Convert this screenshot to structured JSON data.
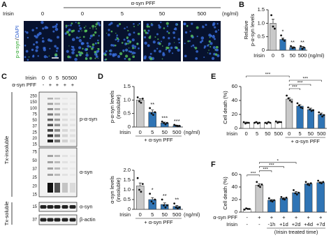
{
  "panel_labels": [
    "A",
    "B",
    "C",
    "D",
    "E",
    "F"
  ],
  "micrographs": {
    "row_label": "Irisin",
    "header": "α-syn PFF",
    "units": "(ng/ml)",
    "doses": [
      "0",
      "0",
      "5",
      "50",
      "500"
    ],
    "stain_green": "p-α-syn",
    "separator": "/",
    "stain_blue": "DAPI"
  },
  "blot": {
    "irisin_label": "Irisin",
    "irisin_doses": [
      "0",
      "0",
      "5",
      "50",
      "500"
    ],
    "pff_label": "α-syn PFF",
    "pff_signs": [
      "-",
      "+",
      "+",
      "+",
      "+"
    ],
    "fractions": [
      "Tx-insoluble",
      "Tx-soluble"
    ],
    "panels": [
      {
        "band": "p-α-syn",
        "markers": [
          "250",
          "150",
          "100",
          "75",
          "50",
          "37",
          "25",
          "20",
          "15"
        ]
      },
      {
        "band": "α-syn",
        "markers": [
          "75",
          "50",
          "37",
          "25",
          "20",
          "15"
        ]
      },
      {
        "band": "α-syn",
        "markers": [
          "15"
        ]
      },
      {
        "band": "β-actin",
        "markers": [
          "37"
        ]
      }
    ]
  },
  "chart_data": [
    {
      "type": "bar",
      "ylabel": [
        "Relative",
        "p-α-syn levels"
      ],
      "xlabel": "Irisin",
      "units": "(ng/ml)",
      "categories": [
        "0",
        "5",
        "50",
        "500"
      ],
      "values": [
        1.0,
        0.4,
        0.1,
        0.1
      ],
      "errors": [
        0.15,
        0.05,
        0.03,
        0.04
      ],
      "points": [
        [
          1.3,
          0.88,
          0.8
        ],
        [
          0.55,
          0.4,
          0.35
        ],
        [
          0.15,
          0.08,
          0.1
        ],
        [
          0.15,
          0.05,
          0.1
        ]
      ],
      "colors": [
        "#c9c9c9",
        "#2f74b5",
        "#2f74b5",
        "#2f74b5"
      ],
      "significance": [
        null,
        "*",
        "**",
        "**"
      ],
      "ylim": [
        0,
        1.5
      ],
      "yticks": [
        0,
        0.5,
        {
          "value": 1,
          "label": "1.0"
        },
        1.5
      ]
    },
    {
      "type": "bar",
      "ylabel": [
        "p-α-syn levels",
        "(insoluble)"
      ],
      "xlabel": "Irisin",
      "units": "(ng/ml)",
      "footer": "+ α-syn PFF",
      "categories": [
        "0",
        "5",
        "50",
        "500"
      ],
      "values": [
        1.0,
        0.55,
        0.15,
        0.05
      ],
      "errors": [
        0.05,
        0.08,
        0.03,
        0.02
      ],
      "points": [
        [
          1.1,
          0.95,
          0.9,
          1.05
        ],
        [
          0.7,
          0.5,
          0.45,
          0.55
        ],
        [
          0.2,
          0.15,
          0.1,
          0.15
        ],
        [
          0.08,
          0.05,
          0.03,
          0.04
        ]
      ],
      "colors": [
        "#c9c9c9",
        "#2f74b5",
        "#2f74b5",
        "#2f74b5"
      ],
      "significance": [
        null,
        "**",
        "***",
        "***"
      ],
      "ylim": [
        0,
        1.5
      ],
      "yticks": [
        0,
        0.5,
        {
          "value": 1,
          "label": "1.0"
        },
        1.5
      ]
    },
    {
      "type": "bar",
      "ylabel": [
        "α-syn levels",
        "(insoluble)"
      ],
      "xlabel": "Irisin",
      "units": "(ng/ml)",
      "footer": "+ α-syn PFF",
      "categories": [
        "0",
        "5",
        "50",
        "500"
      ],
      "values": [
        1.2,
        0.5,
        0.25,
        0.15
      ],
      "errors": [
        0.15,
        0.1,
        0.08,
        0.05
      ],
      "points": [
        [
          1.6,
          1.0,
          0.9,
          1.3
        ],
        [
          0.8,
          0.4,
          0.3,
          0.5
        ],
        [
          0.5,
          0.2,
          0.1,
          0.2
        ],
        [
          0.3,
          0.1,
          0.05,
          0.1
        ]
      ],
      "colors": [
        "#c9c9c9",
        "#2f74b5",
        "#2f74b5",
        "#2f74b5"
      ],
      "significance": [
        null,
        "*",
        "**",
        "**"
      ],
      "ylim": [
        0,
        2
      ],
      "yticks": [
        0,
        0.5,
        {
          "value": 1,
          "label": "1.0"
        },
        1.5,
        {
          "value": 2,
          "label": "2.0"
        }
      ]
    },
    {
      "type": "bar",
      "ylabel": [
        "Cell death (%)"
      ],
      "xlabel": "Irisin",
      "footer": "+ α-syn PFF",
      "footer_span": [
        4,
        7
      ],
      "categories": [
        "0",
        "5",
        "50",
        "500",
        "0",
        "5",
        "50",
        "500"
      ],
      "values": [
        8,
        8,
        8,
        9,
        42,
        32,
        27,
        20
      ],
      "errors": [
        1,
        1,
        1,
        1,
        2,
        2,
        2,
        2
      ],
      "points": [
        [
          9,
          7,
          8,
          8
        ],
        [
          8,
          9,
          7,
          8
        ],
        [
          8,
          7,
          9,
          8
        ],
        [
          10,
          8,
          9,
          9
        ],
        [
          47,
          43,
          40,
          38
        ],
        [
          36,
          33,
          30,
          29
        ],
        [
          30,
          27,
          25,
          26
        ],
        [
          23,
          20,
          17,
          19
        ]
      ],
      "colors": [
        "#ffffff",
        "#ffffff",
        "#ffffff",
        "#ffffff",
        "#c9c9c9",
        "#2f74b5",
        "#2f74b5",
        "#2f74b5"
      ],
      "brackets": [
        {
          "from": 4,
          "to": 5,
          "label": "***"
        },
        {
          "from": 4,
          "to": 6,
          "label": "***"
        },
        {
          "from": 4,
          "to": 7,
          "label": "***"
        },
        {
          "from": 0,
          "to": 4,
          "label": "***"
        }
      ],
      "ylim": [
        0,
        60
      ],
      "yticks": [
        0,
        20,
        40,
        60
      ]
    },
    {
      "type": "bar",
      "ylabel": [
        "Cell death (%)"
      ],
      "xlabel": "α-syn PFF",
      "footer": "(Irisin treated time)",
      "footer_span": [
        2,
        6
      ],
      "categories": [
        "-",
        "+",
        "+",
        "+",
        "+",
        "+",
        "+"
      ],
      "rows": [
        {
          "label": "Irisin",
          "values": [
            "-",
            "-",
            "-1h",
            "+1d",
            "+2d",
            "+4d",
            "+7d"
          ]
        }
      ],
      "values": [
        5,
        43,
        19,
        22,
        31,
        45,
        47
      ],
      "errors": [
        1,
        2,
        1,
        1,
        2,
        1,
        1
      ],
      "points": [
        [
          4,
          6,
          5,
          5
        ],
        [
          48,
          42,
          40,
          44
        ],
        [
          22,
          18,
          17,
          19
        ],
        [
          24,
          21,
          20,
          23
        ],
        [
          35,
          30,
          28,
          31
        ],
        [
          48,
          44,
          43,
          46
        ],
        [
          50,
          47,
          46,
          48
        ]
      ],
      "colors": [
        "#ffffff",
        "#c9c9c9",
        "#2f74b5",
        "#2f74b5",
        "#2f74b5",
        "#2f74b5",
        "#2f74b5"
      ],
      "brackets": [
        {
          "from": 0,
          "to": 1,
          "label": "***"
        },
        {
          "from": 1,
          "to": 2,
          "label": "***"
        },
        {
          "from": 1,
          "to": 3,
          "label": "***"
        },
        {
          "from": 1,
          "to": 4,
          "label": "*"
        }
      ],
      "ylim": [
        0,
        60
      ],
      "yticks": [
        0,
        20,
        40,
        60
      ]
    }
  ]
}
